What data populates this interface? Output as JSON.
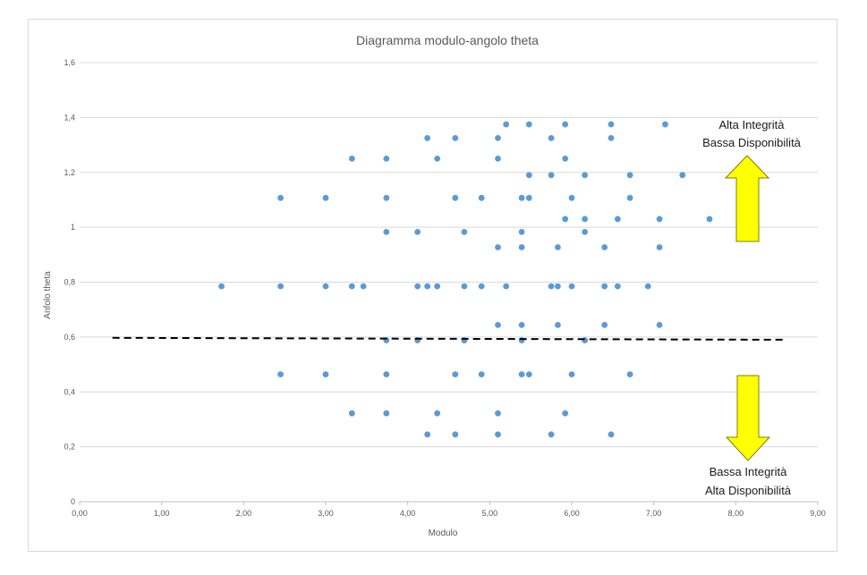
{
  "chart_data": {
    "type": "scatter",
    "title": "Diagramma modulo-angolo theta",
    "xlabel": "Modulo",
    "ylabel": "Anfolo theta",
    "xlim": [
      0,
      9
    ],
    "ylim": [
      0,
      1.6
    ],
    "x_ticks": [
      "0,00",
      "1,00",
      "2,00",
      "3,00",
      "4,00",
      "5,00",
      "6,00",
      "7,00",
      "8,00",
      "9,00"
    ],
    "y_ticks": [
      "0",
      "0,2",
      "0,4",
      "0,6",
      "0,8",
      "1",
      "1,2",
      "1,4",
      "1,6"
    ],
    "grid": "horizontal",
    "legend": "none",
    "point_color": "#5b9bd5",
    "series": [
      {
        "points": [
          [
            5.2,
            1.375
          ],
          [
            5.48,
            1.375
          ],
          [
            5.92,
            1.375
          ],
          [
            6.48,
            1.375
          ],
          [
            7.14,
            1.375
          ],
          [
            4.24,
            1.325
          ],
          [
            4.58,
            1.325
          ],
          [
            5.1,
            1.325
          ],
          [
            5.75,
            1.325
          ],
          [
            6.48,
            1.325
          ],
          [
            3.32,
            1.25
          ],
          [
            3.74,
            1.25
          ],
          [
            4.36,
            1.25
          ],
          [
            5.1,
            1.25
          ],
          [
            5.92,
            1.25
          ],
          [
            5.48,
            1.19
          ],
          [
            5.75,
            1.19
          ],
          [
            6.16,
            1.19
          ],
          [
            6.71,
            1.19
          ],
          [
            7.35,
            1.19
          ],
          [
            2.45,
            1.107
          ],
          [
            3.0,
            1.107
          ],
          [
            3.74,
            1.107
          ],
          [
            4.58,
            1.107
          ],
          [
            4.9,
            1.107
          ],
          [
            5.39,
            1.107
          ],
          [
            5.48,
            1.107
          ],
          [
            6.0,
            1.107
          ],
          [
            6.71,
            1.107
          ],
          [
            5.92,
            1.03
          ],
          [
            6.16,
            1.03
          ],
          [
            6.56,
            1.03
          ],
          [
            7.07,
            1.03
          ],
          [
            7.68,
            1.03
          ],
          [
            3.74,
            0.983
          ],
          [
            4.12,
            0.983
          ],
          [
            4.69,
            0.983
          ],
          [
            5.39,
            0.983
          ],
          [
            6.16,
            0.983
          ],
          [
            5.1,
            0.927
          ],
          [
            5.39,
            0.927
          ],
          [
            5.83,
            0.927
          ],
          [
            6.4,
            0.927
          ],
          [
            7.07,
            0.927
          ],
          [
            1.73,
            0.785
          ],
          [
            2.45,
            0.785
          ],
          [
            3.0,
            0.785
          ],
          [
            3.32,
            0.785
          ],
          [
            3.46,
            0.785
          ],
          [
            4.12,
            0.785
          ],
          [
            4.24,
            0.785
          ],
          [
            4.36,
            0.785
          ],
          [
            4.69,
            0.785
          ],
          [
            4.9,
            0.785
          ],
          [
            5.2,
            0.785
          ],
          [
            5.75,
            0.785
          ],
          [
            5.83,
            0.785
          ],
          [
            6.0,
            0.785
          ],
          [
            6.4,
            0.785
          ],
          [
            6.56,
            0.785
          ],
          [
            6.93,
            0.785
          ],
          [
            5.1,
            0.644
          ],
          [
            5.39,
            0.644
          ],
          [
            5.83,
            0.644
          ],
          [
            6.4,
            0.644
          ],
          [
            7.07,
            0.644
          ],
          [
            3.74,
            0.588
          ],
          [
            4.12,
            0.588
          ],
          [
            4.69,
            0.588
          ],
          [
            5.39,
            0.588
          ],
          [
            6.16,
            0.588
          ],
          [
            2.45,
            0.464
          ],
          [
            3.0,
            0.464
          ],
          [
            3.74,
            0.464
          ],
          [
            4.58,
            0.464
          ],
          [
            4.9,
            0.464
          ],
          [
            5.39,
            0.464
          ],
          [
            5.48,
            0.464
          ],
          [
            6.0,
            0.464
          ],
          [
            6.71,
            0.464
          ],
          [
            3.32,
            0.322
          ],
          [
            3.74,
            0.322
          ],
          [
            4.36,
            0.322
          ],
          [
            5.1,
            0.322
          ],
          [
            5.92,
            0.322
          ],
          [
            4.24,
            0.245
          ],
          [
            4.58,
            0.245
          ],
          [
            5.1,
            0.245
          ],
          [
            5.75,
            0.245
          ],
          [
            6.48,
            0.245
          ]
        ]
      }
    ],
    "threshold_line": {
      "x": [
        0.4,
        8.6
      ],
      "y": [
        0.597,
        0.59
      ],
      "style": "dashed",
      "color": "#000000"
    },
    "annotations": [
      {
        "lines": [
          "Alta Integrità",
          "Bassa Disponibilità"
        ],
        "arrow": "up",
        "arrow_color": "#ffff00"
      },
      {
        "lines": [
          "Bassa Integrità",
          "Alta Disponibilità"
        ],
        "arrow": "down",
        "arrow_color": "#ffff00"
      }
    ]
  }
}
